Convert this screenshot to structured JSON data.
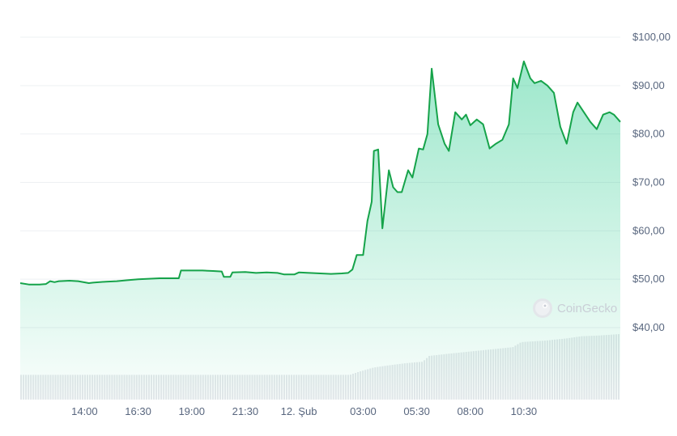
{
  "watermark": {
    "text": "CoinGecko",
    "icon": "coingecko-logo-icon"
  },
  "colors": {
    "line": "#16a34a",
    "area_top": "#16c784",
    "volume": "#e5e7eb",
    "grid": "#eef0f3",
    "tick_text": "#58667e"
  },
  "chart_data": [
    {
      "type": "area",
      "title": "",
      "xlabel": "",
      "ylabel": "",
      "x_ticks": [
        "14:00",
        "16:30",
        "19:00",
        "21:30",
        "12. Şub",
        "03:00",
        "05:30",
        "08:00",
        "10:30"
      ],
      "y_ticks": [
        "$40,00",
        "$50,00",
        "$60,00",
        "$70,00",
        "$80,00",
        "$90,00",
        "$100,00"
      ],
      "ylim": [
        40,
        100
      ],
      "grid": true,
      "x_unit": "hours since 11:00 on day before 12. Şub",
      "price": [
        [
          0,
          49.2
        ],
        [
          0.4,
          48.9
        ],
        [
          0.9,
          48.9
        ],
        [
          1.2,
          49.0
        ],
        [
          1.4,
          49.6
        ],
        [
          1.6,
          49.4
        ],
        [
          1.8,
          49.6
        ],
        [
          2.3,
          49.7
        ],
        [
          2.7,
          49.6
        ],
        [
          3.2,
          49.2
        ],
        [
          3.4,
          49.3
        ],
        [
          4.0,
          49.5
        ],
        [
          4.5,
          49.6
        ],
        [
          5.0,
          49.8
        ],
        [
          5.5,
          50.0
        ],
        [
          6.0,
          50.1
        ],
        [
          6.5,
          50.2
        ],
        [
          7.4,
          50.2
        ],
        [
          7.5,
          51.8
        ],
        [
          8.5,
          51.8
        ],
        [
          9.0,
          51.7
        ],
        [
          9.4,
          51.6
        ],
        [
          9.5,
          50.5
        ],
        [
          9.8,
          50.5
        ],
        [
          9.9,
          51.4
        ],
        [
          10.5,
          51.5
        ],
        [
          11.0,
          51.3
        ],
        [
          11.5,
          51.4
        ],
        [
          12.0,
          51.3
        ],
        [
          12.3,
          51.0
        ],
        [
          12.8,
          51.0
        ],
        [
          13.0,
          51.4
        ],
        [
          13.5,
          51.3
        ],
        [
          14.0,
          51.2
        ],
        [
          14.5,
          51.1
        ],
        [
          15.0,
          51.2
        ],
        [
          15.3,
          51.3
        ],
        [
          15.5,
          52.0
        ],
        [
          15.7,
          55.0
        ],
        [
          16.0,
          55.0
        ],
        [
          16.2,
          62.0
        ],
        [
          16.4,
          66.0
        ],
        [
          16.5,
          76.5
        ],
        [
          16.7,
          76.8
        ],
        [
          16.9,
          60.5
        ],
        [
          17.2,
          72.5
        ],
        [
          17.4,
          69.0
        ],
        [
          17.6,
          68.0
        ],
        [
          17.8,
          68.0
        ],
        [
          18.1,
          72.5
        ],
        [
          18.3,
          71.0
        ],
        [
          18.6,
          77.0
        ],
        [
          18.8,
          76.8
        ],
        [
          19.0,
          80.0
        ],
        [
          19.2,
          93.5
        ],
        [
          19.5,
          82.0
        ],
        [
          19.8,
          78.0
        ],
        [
          20.0,
          76.5
        ],
        [
          20.3,
          84.5
        ],
        [
          20.6,
          83.0
        ],
        [
          20.8,
          84.0
        ],
        [
          21.0,
          81.8
        ],
        [
          21.3,
          83.0
        ],
        [
          21.6,
          82.0
        ],
        [
          21.9,
          77.0
        ],
        [
          22.2,
          78.0
        ],
        [
          22.5,
          78.8
        ],
        [
          22.8,
          82.0
        ],
        [
          23.0,
          91.5
        ],
        [
          23.2,
          89.5
        ],
        [
          23.5,
          95.0
        ],
        [
          23.8,
          91.5
        ],
        [
          24.0,
          90.5
        ],
        [
          24.3,
          91.0
        ],
        [
          24.6,
          90.0
        ],
        [
          24.9,
          88.5
        ],
        [
          25.2,
          81.5
        ],
        [
          25.5,
          78.0
        ],
        [
          25.8,
          84.5
        ],
        [
          26.0,
          86.5
        ],
        [
          26.3,
          84.5
        ],
        [
          26.6,
          82.5
        ],
        [
          26.9,
          81.0
        ],
        [
          27.2,
          84.0
        ],
        [
          27.5,
          84.5
        ],
        [
          27.7,
          84.0
        ],
        [
          28.0,
          82.5
        ]
      ],
      "volume_relative": [
        [
          0,
          0.34
        ],
        [
          15.4,
          0.34
        ],
        [
          15.8,
          0.38
        ],
        [
          16.5,
          0.44
        ],
        [
          17.2,
          0.47
        ],
        [
          18.0,
          0.5
        ],
        [
          18.8,
          0.52
        ],
        [
          19.1,
          0.6
        ],
        [
          20.0,
          0.63
        ],
        [
          21.0,
          0.66
        ],
        [
          22.0,
          0.69
        ],
        [
          23.0,
          0.72
        ],
        [
          23.4,
          0.79
        ],
        [
          24.5,
          0.81
        ],
        [
          25.5,
          0.84
        ],
        [
          26.2,
          0.87
        ],
        [
          27.0,
          0.88
        ],
        [
          28.0,
          0.9
        ]
      ]
    }
  ]
}
